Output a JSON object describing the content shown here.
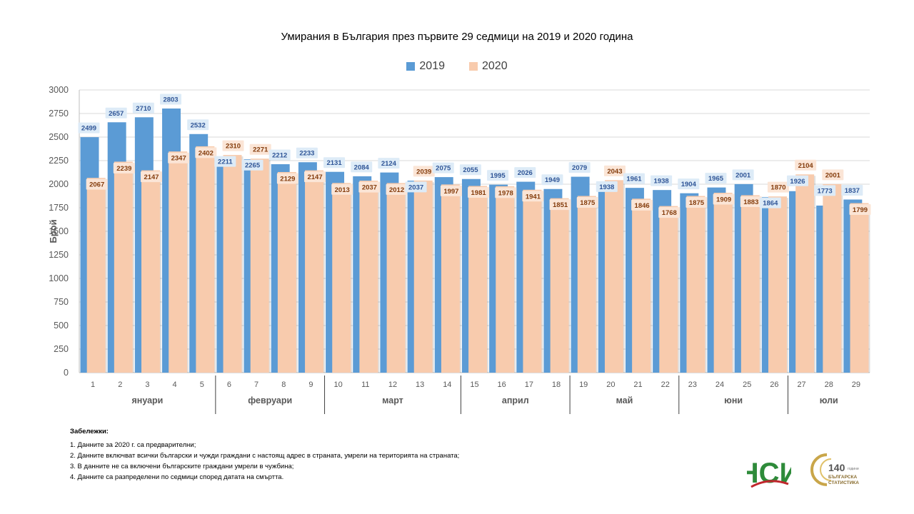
{
  "chart_data": {
    "type": "bar",
    "title": "Умирания в България през първите 29 седмици на 2019 и 2020 година",
    "ylabel": "Брой",
    "ylim": [
      0,
      3000
    ],
    "yticks": [
      0,
      250,
      500,
      750,
      1000,
      1250,
      1500,
      1750,
      2000,
      2250,
      2500,
      2750,
      3000
    ],
    "grid": true,
    "legend_position": "top-center",
    "categories": [
      "1",
      "2",
      "3",
      "4",
      "5",
      "6",
      "7",
      "8",
      "9",
      "10",
      "11",
      "12",
      "13",
      "14",
      "15",
      "16",
      "17",
      "18",
      "19",
      "20",
      "21",
      "22",
      "23",
      "24",
      "25",
      "26",
      "27",
      "28",
      "29"
    ],
    "months": [
      {
        "label": "януари",
        "weeks": [
          1,
          5
        ]
      },
      {
        "label": "февруари",
        "weeks": [
          6,
          9
        ]
      },
      {
        "label": "март",
        "weeks": [
          10,
          14
        ]
      },
      {
        "label": "април",
        "weeks": [
          15,
          18
        ]
      },
      {
        "label": "май",
        "weeks": [
          19,
          22
        ]
      },
      {
        "label": "юни",
        "weeks": [
          23,
          26
        ]
      },
      {
        "label": "юли",
        "weeks": [
          27,
          29
        ]
      }
    ],
    "series": [
      {
        "name": "2019",
        "color": "#5b9bd5",
        "label_color": "#2f5597",
        "label_bg": "#ddebf7",
        "values": [
          2499,
          2657,
          2710,
          2803,
          2532,
          2211,
          2265,
          2212,
          2233,
          2131,
          2084,
          2124,
          2037,
          2075,
          2055,
          1995,
          2026,
          1949,
          2079,
          1938,
          1961,
          1938,
          1904,
          1965,
          2001,
          1864,
          1926,
          1773,
          1837
        ]
      },
      {
        "name": "2020",
        "color": "#f8cbad",
        "label_color": "#843c0c",
        "label_bg": "#fbe5d6",
        "values": [
          2067,
          2239,
          2147,
          2347,
          2402,
          2310,
          2271,
          2129,
          2147,
          2013,
          2037,
          2012,
          2039,
          1997,
          1981,
          1978,
          1941,
          1851,
          1875,
          2043,
          1846,
          1768,
          1875,
          1909,
          1883,
          1870,
          2104,
          2001,
          1799
        ]
      }
    ]
  },
  "notes": {
    "title": "Забележки:",
    "items": [
      "1. Данните за 2020 г. са предварителни;",
      "2. Данните включват всички български и чужди граждани с настоящ адрес в страната, умрели на територията на страната;",
      "3. В данните не са включени българските граждани умрели в чужбина;",
      "4. Данните са разпределени по седмици според датата на смъртта."
    ]
  },
  "logos": {
    "nsi": "НСИ",
    "anniversary_number": "140",
    "anniversary_word": "години",
    "anniversary_line1": "БЪЛГАРСКА",
    "anniversary_line2": "СТАТИСТИКА"
  }
}
